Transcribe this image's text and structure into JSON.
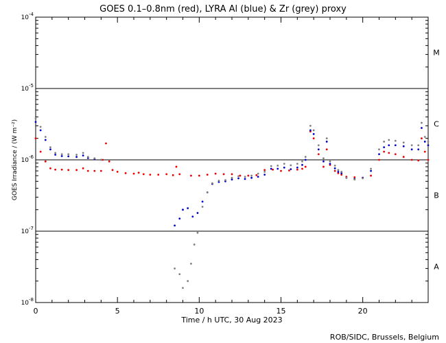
{
  "chart_data": {
    "type": "scatter",
    "title": "GOES 0.1–0.8nm (red), LYRA Al (blue) & Zr (grey) proxy",
    "xlabel": "Time / h UTC, 30 Aug 2023",
    "ylabel": "GOES Irradiance / (W m⁻²)",
    "xlim": [
      0,
      24
    ],
    "ylim": [
      1e-08,
      0.0001
    ],
    "yscale": "log",
    "x_ticks": [
      0,
      5,
      10,
      15,
      20
    ],
    "x_tick_labels": [
      "0",
      "5",
      "10",
      "15",
      "20"
    ],
    "y_tick_labels": [
      {
        "value": 1e-08,
        "base": "10",
        "exp": "-8"
      },
      {
        "value": 1e-07,
        "base": "10",
        "exp": "-7"
      },
      {
        "value": 1e-06,
        "base": "10",
        "exp": "-6"
      },
      {
        "value": 1e-05,
        "base": "10",
        "exp": "-5"
      },
      {
        "value": 0.0001,
        "base": "10",
        "exp": "-4"
      }
    ],
    "flare_class_labels": [
      {
        "label": "A",
        "value": 3.2e-08
      },
      {
        "label": "B",
        "value": 3.2e-07
      },
      {
        "label": "C",
        "value": 3.2e-06
      },
      {
        "label": "M",
        "value": 3.2e-05
      }
    ],
    "reference_lines": [
      1e-07,
      1e-06,
      1e-05
    ],
    "series": [
      {
        "name": "GOES 0.1–0.8nm",
        "color": "#ee0000",
        "x": [
          0,
          0.3,
          0.6,
          0.9,
          1.2,
          1.6,
          2.0,
          2.5,
          2.9,
          3.2,
          3.6,
          4.0,
          4.1,
          4.3,
          4.5,
          4.7,
          5.0,
          5.5,
          6.0,
          6.3,
          6.6,
          7.0,
          7.5,
          8.0,
          8.4,
          8.6,
          8.8,
          9.5,
          10.0,
          10.5,
          11.0,
          11.5,
          12.0,
          12.5,
          13.0,
          13.5,
          14.0,
          14.5,
          15.0,
          15.5,
          16.0,
          16.3,
          16.5,
          16.8,
          17.0,
          17.3,
          17.6,
          17.8,
          18.0,
          18.3,
          18.5,
          18.7,
          19.0,
          19.5,
          20.0,
          20.5,
          21.0,
          21.3,
          21.6,
          22.0,
          22.5,
          23.0,
          23.4,
          23.6,
          23.8,
          24.0
        ],
        "y": [
          2e-06,
          1.3e-06,
          9.5e-07,
          7.6e-07,
          7.3e-07,
          7.3e-07,
          7.2e-07,
          7.2e-07,
          7.6e-07,
          7e-07,
          7e-07,
          7e-07,
          1e-06,
          1.7e-06,
          9.5e-07,
          7.2e-07,
          6.8e-07,
          6.5e-07,
          6.4e-07,
          6.6e-07,
          6.3e-07,
          6.2e-07,
          6.2e-07,
          6.3e-07,
          6.1e-07,
          8e-07,
          6.3e-07,
          6e-07,
          6e-07,
          6.2e-07,
          6.4e-07,
          6.3e-07,
          6.3e-07,
          6e-07,
          6e-07,
          6.1e-07,
          7.2e-07,
          7.3e-07,
          7e-07,
          7.1e-07,
          7.3e-07,
          7.5e-07,
          8e-07,
          2.5e-06,
          2e-06,
          1.2e-06,
          8e-07,
          1.4e-06,
          8.5e-07,
          7e-07,
          6.5e-07,
          6.2e-07,
          5.8e-07,
          5.7e-07,
          5.6e-07,
          6e-07,
          1e-06,
          1.3e-06,
          1.25e-06,
          1.2e-06,
          1.1e-06,
          1e-06,
          9.8e-07,
          2e-06,
          1.3e-06,
          1e-06
        ]
      },
      {
        "name": "LYRA Al proxy",
        "color": "#0000cc",
        "x": [
          0,
          0.3,
          0.6,
          0.9,
          1.2,
          1.6,
          2.0,
          2.5,
          2.9,
          3.2,
          3.6,
          4.0,
          8.5,
          8.8,
          9.0,
          9.3,
          9.6,
          9.9,
          10.2,
          10.5,
          10.8,
          11.2,
          11.6,
          12.0,
          12.4,
          12.8,
          13.2,
          13.6,
          14.0,
          14.4,
          14.8,
          15.2,
          15.6,
          16.0,
          16.3,
          16.5,
          16.8,
          17.0,
          17.3,
          17.6,
          17.8,
          18.0,
          18.3,
          18.5,
          18.7,
          19.0,
          19.5,
          20.0,
          20.5,
          21.0,
          21.3,
          21.6,
          22.0,
          22.5,
          23.0,
          23.4,
          23.6,
          23.8,
          24.0
        ],
        "y": [
          3.4e-06,
          2.6e-06,
          1.9e-06,
          1.4e-06,
          1.18e-06,
          1.13e-06,
          1.12e-06,
          1.1e-06,
          1.15e-06,
          1.06e-06,
          1.03e-06,
          1e-06,
          1.2e-07,
          1.5e-07,
          2e-07,
          2.1e-07,
          1.6e-07,
          1.8e-07,
          2.6e-07,
          3.5e-07,
          4.6e-07,
          4.9e-07,
          5e-07,
          5.3e-07,
          5.5e-07,
          5.4e-07,
          5.6e-07,
          5.8e-07,
          6.2e-07,
          7.5e-07,
          7.5e-07,
          7.8e-07,
          7.4e-07,
          7.8e-07,
          8.5e-07,
          1e-06,
          2.6e-06,
          2.3e-06,
          1.4e-06,
          9.5e-07,
          1.8e-06,
          8.8e-07,
          7.6e-07,
          6.8e-07,
          6.5e-07,
          5.6e-07,
          5.4e-07,
          5.6e-07,
          7e-07,
          1.2e-06,
          1.5e-06,
          1.6e-06,
          1.6e-06,
          1.55e-06,
          1.4e-06,
          1.4e-06,
          2.8e-06,
          1.8e-06,
          1.6e-06
        ]
      },
      {
        "name": "LYRA Zr proxy",
        "color": "#808080",
        "x": [
          0,
          0.3,
          0.6,
          0.9,
          1.2,
          1.6,
          2.0,
          2.5,
          2.9,
          3.2,
          3.6,
          4.0,
          8.5,
          8.8,
          9.0,
          9.3,
          9.5,
          9.7,
          9.9,
          10.2,
          10.5,
          10.8,
          11.2,
          11.6,
          12.0,
          12.4,
          12.8,
          13.2,
          13.6,
          14.0,
          14.4,
          14.8,
          15.2,
          15.6,
          16.0,
          16.3,
          16.5,
          16.8,
          17.0,
          17.3,
          17.6,
          17.8,
          18.0,
          18.3,
          18.5,
          18.7,
          19.0,
          19.5,
          20.0,
          20.5,
          21.0,
          21.3,
          21.6,
          22.0,
          22.5,
          23.0,
          23.4,
          23.6,
          23.8,
          24.0
        ],
        "y": [
          3.8e-06,
          2.9e-06,
          2.1e-06,
          1.5e-06,
          1.25e-06,
          1.2e-06,
          1.2e-06,
          1.18e-06,
          1.25e-06,
          1.1e-06,
          1.05e-06,
          1e-06,
          3e-08,
          2.5e-08,
          1.6e-08,
          2e-08,
          3.5e-08,
          6.5e-08,
          9.5e-08,
          2.2e-07,
          3.5e-07,
          4.7e-07,
          5.1e-07,
          5.2e-07,
          5.6e-07,
          5.9e-07,
          5.8e-07,
          6e-07,
          6.4e-07,
          6.8e-07,
          8.2e-07,
          8.3e-07,
          8.8e-07,
          8.4e-07,
          8.8e-07,
          9.5e-07,
          1.1e-06,
          3e-06,
          2.6e-06,
          1.6e-06,
          1.05e-06,
          2e-06,
          9.5e-07,
          8.3e-07,
          7.2e-07,
          6.8e-07,
          5.6e-07,
          5.3e-07,
          5.5e-07,
          7.5e-07,
          1.4e-06,
          1.8e-06,
          1.9e-06,
          1.85e-06,
          1.75e-06,
          1.6e-06,
          1.6e-06,
          3.3e-06,
          2.1e-06,
          1.8e-06
        ]
      }
    ]
  },
  "credit": "ROB/SIDC, Brussels, Belgium"
}
